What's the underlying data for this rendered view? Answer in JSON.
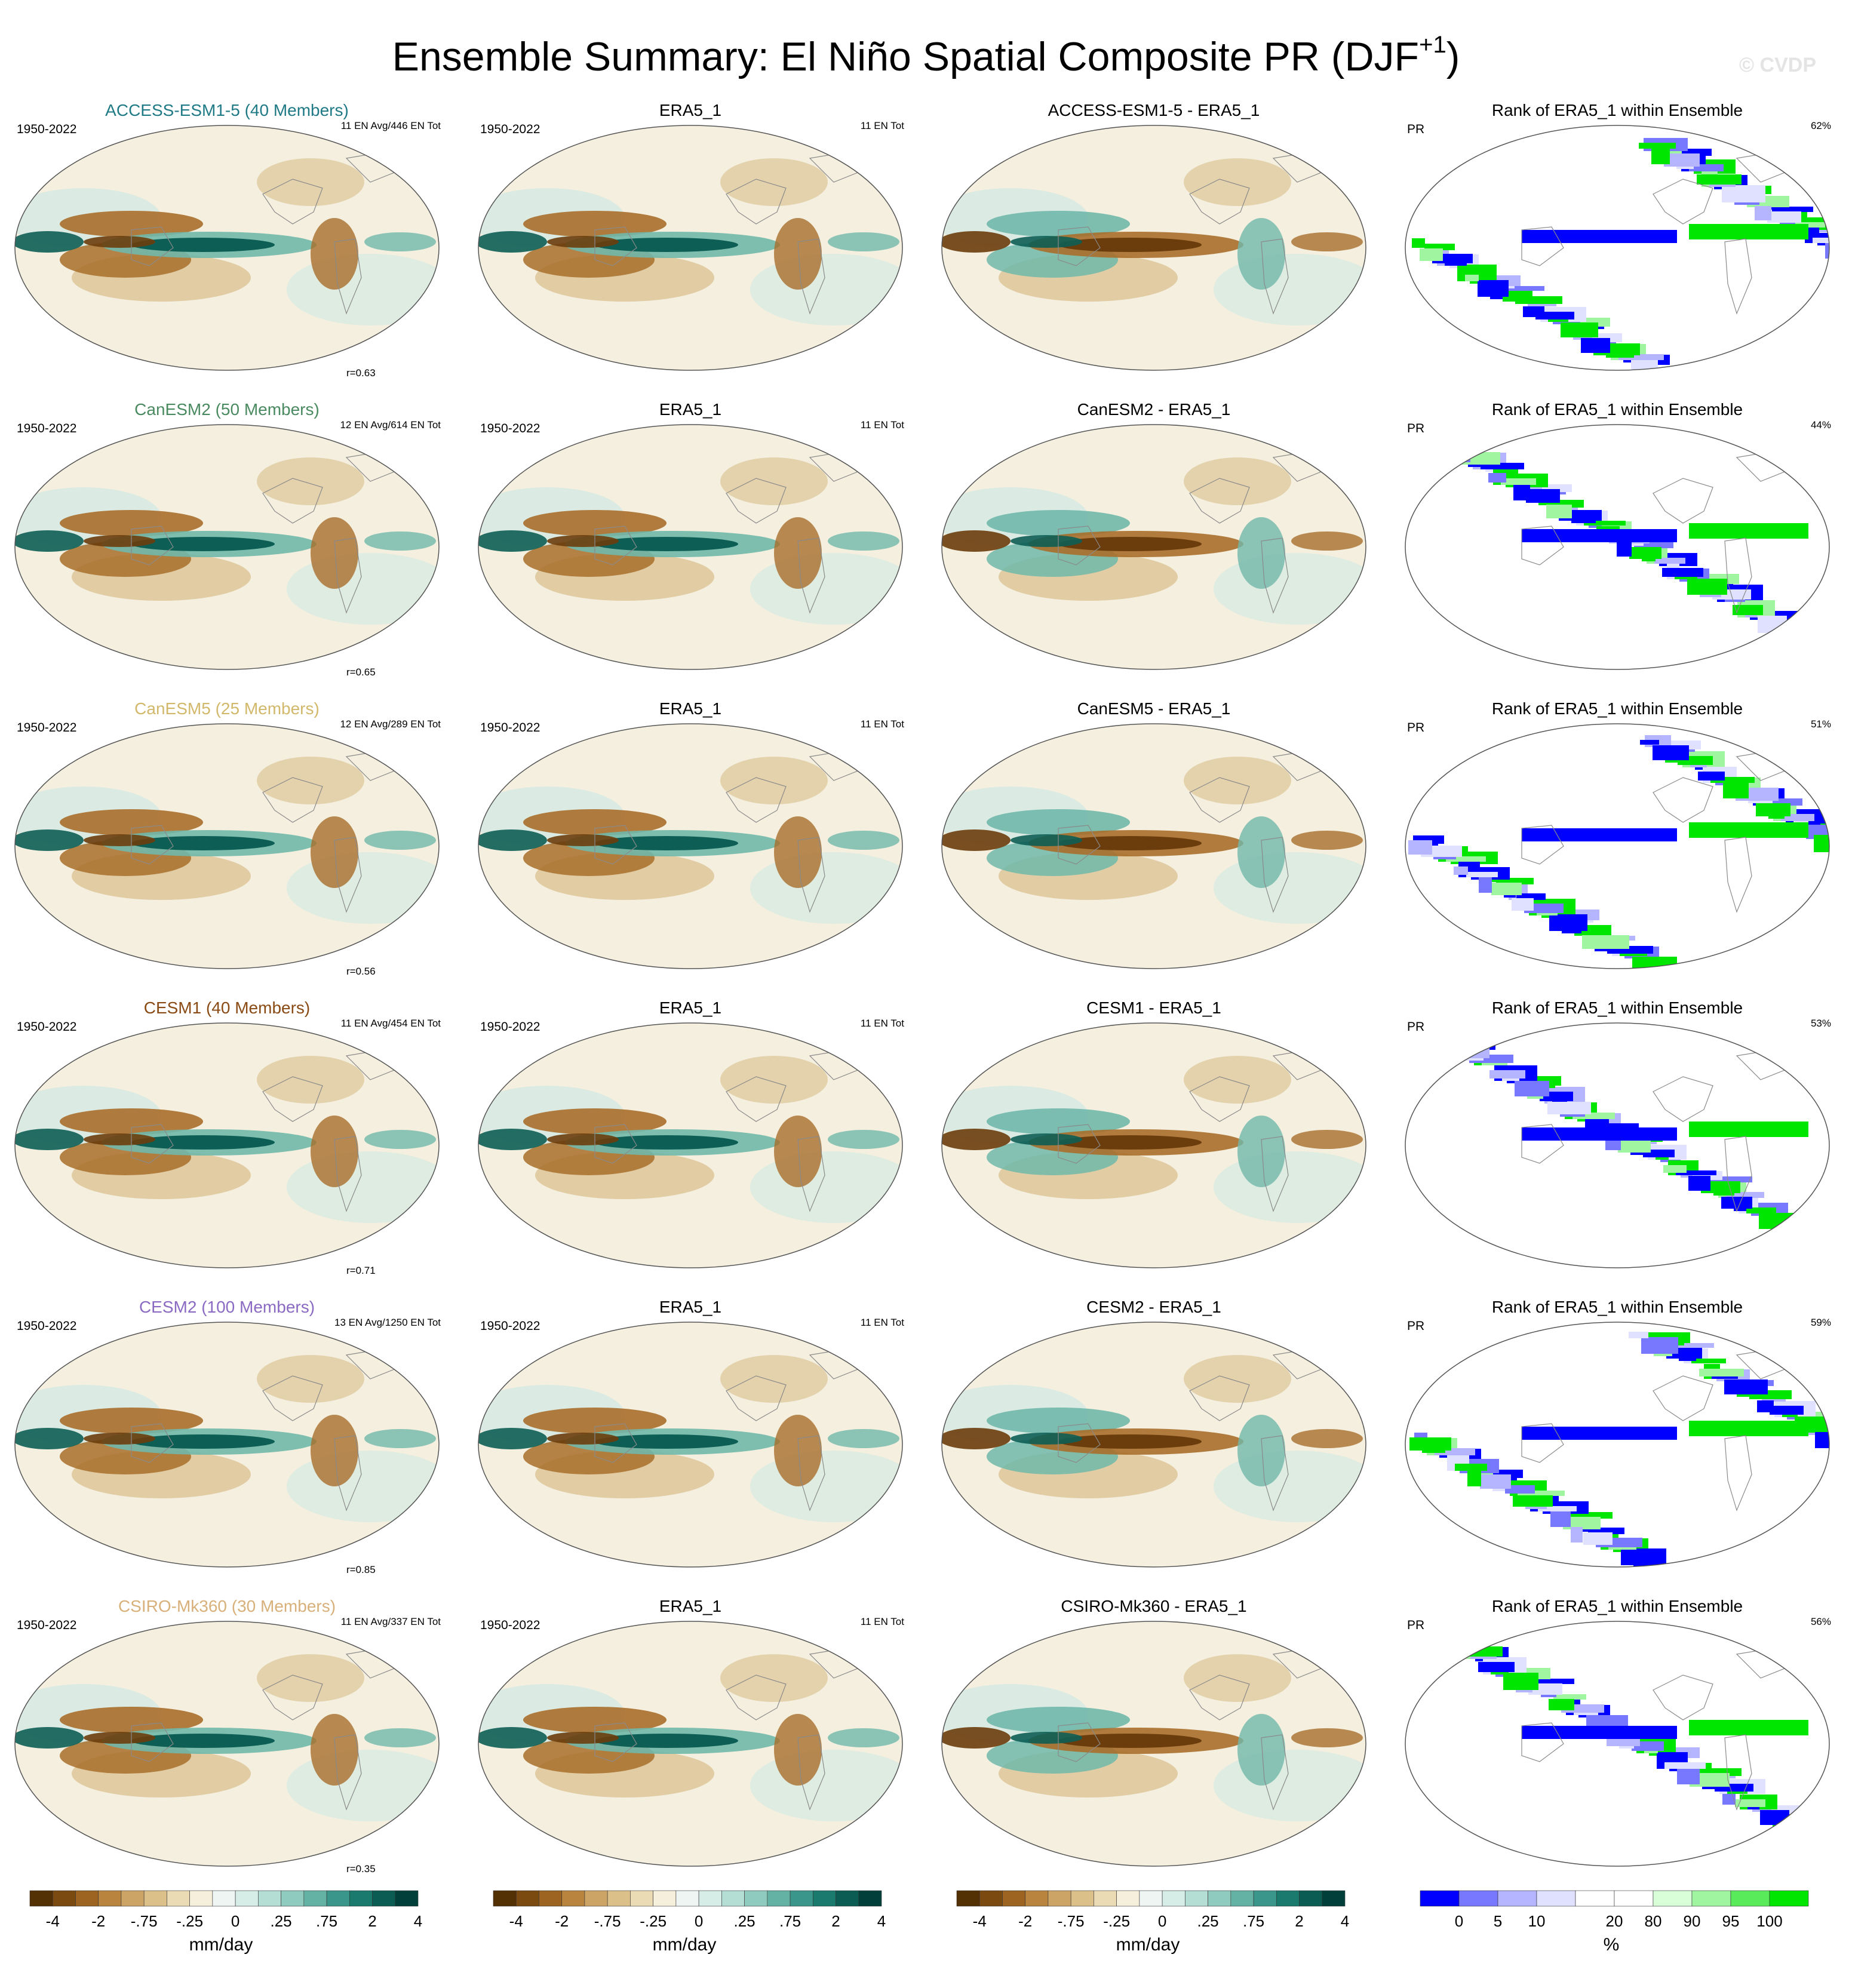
{
  "header": {
    "title_main": "Ensemble Summary: El Niño Spatial Composite PR (DJF",
    "title_sup": "+1",
    "title_end": ")",
    "watermark": "© CVDP"
  },
  "rows": [
    {
      "model_title": "ACCESS-ESM1-5 (40 Members)",
      "model_color": "#1f7a86",
      "period": "1950-2022",
      "counts": "11 EN Avg/446 EN Tot",
      "r": "r=0.63",
      "obs_title": "ERA5_1",
      "obs_period": "1950-2022",
      "obs_counts": "11 EN Tot",
      "diff_title": "ACCESS-ESM1-5 - ERA5_1",
      "rank_title": "Rank of ERA5_1 within Ensemble",
      "rank_var": "PR",
      "rank_pct": "62%"
    },
    {
      "model_title": "CanESM2 (50 Members)",
      "model_color": "#4a8a60",
      "period": "1950-2022",
      "counts": "12 EN Avg/614 EN Tot",
      "r": "r=0.65",
      "obs_title": "ERA5_1",
      "obs_period": "1950-2022",
      "obs_counts": "11 EN Tot",
      "diff_title": "CanESM2 - ERA5_1",
      "rank_title": "Rank of ERA5_1 within Ensemble",
      "rank_var": "PR",
      "rank_pct": "44%"
    },
    {
      "model_title": "CanESM5 (25 Members)",
      "model_color": "#d2b86a",
      "period": "1950-2022",
      "counts": "12 EN Avg/289 EN Tot",
      "r": "r=0.56",
      "obs_title": "ERA5_1",
      "obs_period": "1950-2022",
      "obs_counts": "11 EN Tot",
      "diff_title": "CanESM5 - ERA5_1",
      "rank_title": "Rank of ERA5_1 within Ensemble",
      "rank_var": "PR",
      "rank_pct": "51%"
    },
    {
      "model_title": "CESM1 (40 Members)",
      "model_color": "#8a4a14",
      "period": "1950-2022",
      "counts": "11 EN Avg/454 EN Tot",
      "r": "r=0.71",
      "obs_title": "ERA5_1",
      "obs_period": "1950-2022",
      "obs_counts": "11 EN Tot",
      "diff_title": "CESM1 - ERA5_1",
      "rank_title": "Rank of ERA5_1 within Ensemble",
      "rank_var": "PR",
      "rank_pct": "53%"
    },
    {
      "model_title": "CESM2 (100 Members)",
      "model_color": "#8a6ac2",
      "period": "1950-2022",
      "counts": "13 EN Avg/1250 EN Tot",
      "r": "r=0.85",
      "obs_title": "ERA5_1",
      "obs_period": "1950-2022",
      "obs_counts": "11 EN Tot",
      "diff_title": "CESM2 - ERA5_1",
      "rank_title": "Rank of ERA5_1 within Ensemble",
      "rank_var": "PR",
      "rank_pct": "59%"
    },
    {
      "model_title": "CSIRO-Mk360 (30 Members)",
      "model_color": "#d8b07a",
      "period": "1950-2022",
      "counts": "11 EN Avg/337 EN Tot",
      "r": "r=0.35",
      "obs_title": "ERA5_1",
      "obs_period": "1950-2022",
      "obs_counts": "11 EN Tot",
      "diff_title": "CSIRO-Mk360 - ERA5_1",
      "rank_title": "Rank of ERA5_1 within Ensemble",
      "rank_var": "PR",
      "rank_pct": "56%"
    }
  ],
  "colorbars": {
    "pr_colors": [
      "#543005",
      "#7a4a10",
      "#9c6420",
      "#b8843e",
      "#cca466",
      "#dcc08a",
      "#eadbb4",
      "#f5efdc",
      "#eef5f2",
      "#d6ece7",
      "#b4ddd4",
      "#8fcbbf",
      "#64b2a4",
      "#3a968a",
      "#1a7a6e",
      "#0b5c52",
      "#01403a"
    ],
    "pr_ticks": [
      "-4",
      "-2",
      "-.75",
      "-.25",
      "0",
      ".25",
      ".75",
      "2",
      "4"
    ],
    "pr_unit": "mm/day",
    "rank_colors": [
      "#0000ff",
      "#7878ff",
      "#b4b4ff",
      "#e0e0ff",
      "#ffffff",
      "#ffffff",
      "#d8ffd8",
      "#a0f5a0",
      "#5aeb5a",
      "#00e600"
    ],
    "rank_ticks": [
      "0",
      "5",
      "10",
      "20",
      "80",
      "90",
      "95",
      "100"
    ],
    "rank_unit": "%"
  }
}
